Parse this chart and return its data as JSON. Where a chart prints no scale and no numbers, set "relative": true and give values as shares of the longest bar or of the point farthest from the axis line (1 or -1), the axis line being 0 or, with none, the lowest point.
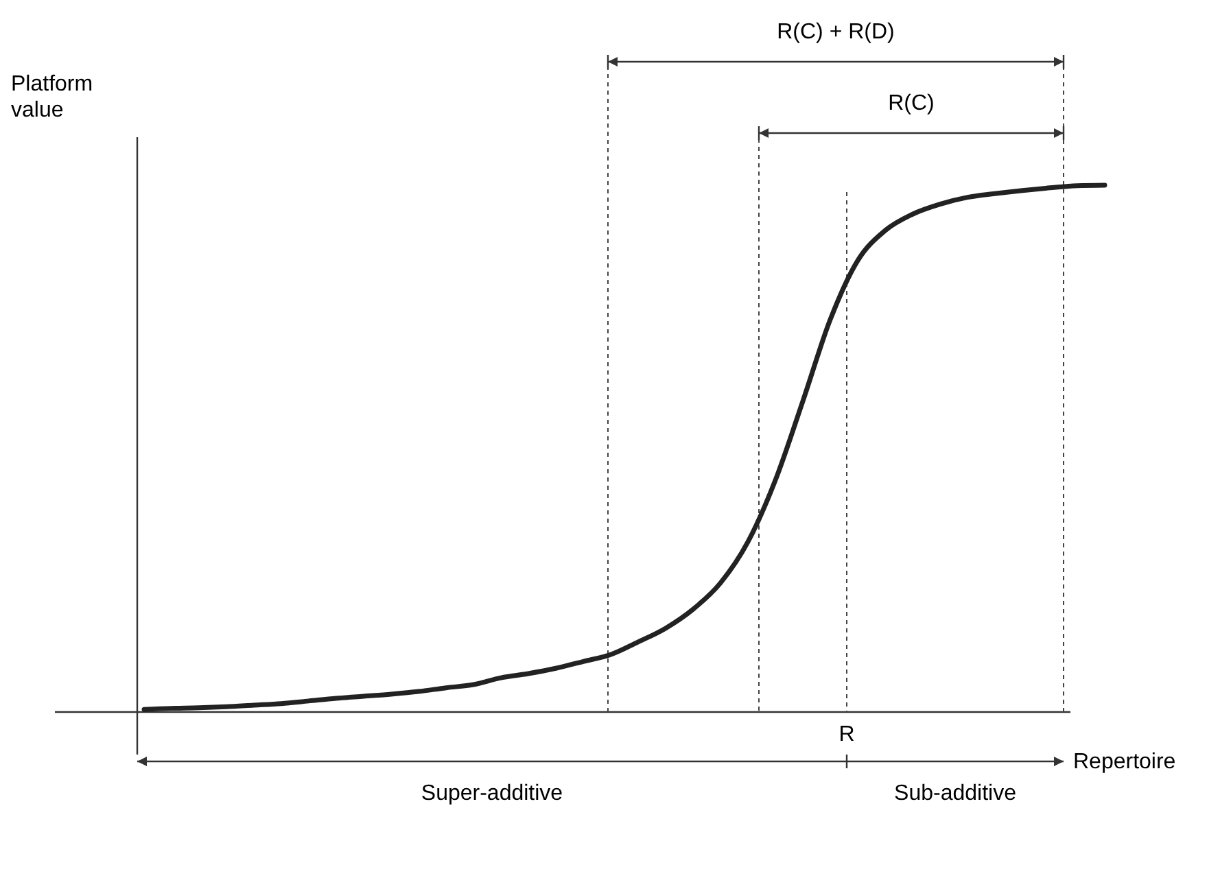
{
  "chart_data": {
    "type": "line",
    "relative": true,
    "ylabel": "Platform value",
    "xlabel": "Repertoire",
    "categories": [
      null,
      null,
      null,
      null,
      null,
      null,
      null,
      null,
      null,
      null,
      null,
      null,
      null,
      null,
      null,
      null,
      null,
      null,
      null,
      null,
      null,
      null,
      null,
      null,
      null,
      null,
      null,
      null,
      null,
      null,
      null,
      null,
      null,
      null,
      null,
      null
    ],
    "series": [
      {
        "color": "#222222",
        "values": [
          0.005,
          0.007,
          0.008,
          0.01,
          0.013,
          0.016,
          0.021,
          0.026,
          0.03,
          0.034,
          0.039,
          0.046,
          0.052,
          0.065,
          0.073,
          0.083,
          0.096,
          0.109,
          0.133,
          0.159,
          0.195,
          0.245,
          0.323,
          0.44,
          0.59,
          0.745,
          0.857,
          0.914,
          0.945,
          0.964,
          0.977,
          0.984,
          0.99,
          0.995,
          0.999,
          1
        ]
      }
    ],
    "annotations": [
      "R(C) + R(D)",
      "R(C)",
      "R",
      "Super-additive",
      "Sub-additive"
    ]
  }
}
